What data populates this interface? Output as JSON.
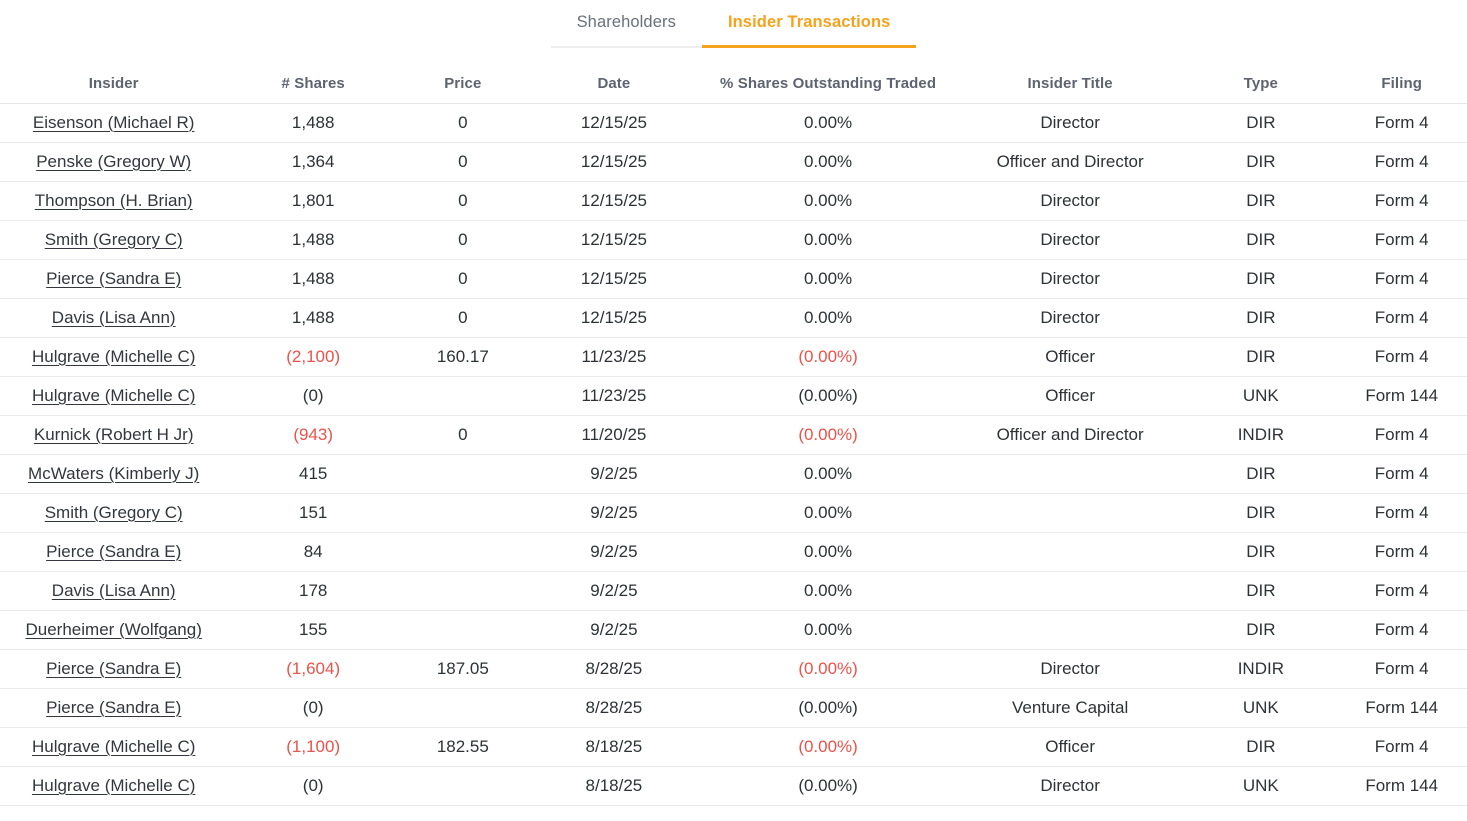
{
  "tabs": [
    {
      "label": "Shareholders",
      "active": false
    },
    {
      "label": "Insider Transactions",
      "active": true
    }
  ],
  "colors": {
    "accent_orange": "#f5a21c",
    "negative_red": "#e9534b",
    "inactive_tab_gray": "#69707a",
    "row_border": "#e9ebee"
  },
  "table": {
    "columns": [
      "Insider",
      "# Shares",
      "Price",
      "Date",
      "% Shares Outstanding Traded",
      "Insider Title",
      "Type",
      "Filing"
    ],
    "rows": [
      {
        "insider": "Eisenson (Michael R)",
        "shares": "1,488",
        "price": "0",
        "date": "12/15/25",
        "pct": "0.00%",
        "title": "Director",
        "type": "DIR",
        "filing": "Form 4",
        "negative": false
      },
      {
        "insider": "Penske (Gregory W)",
        "shares": "1,364",
        "price": "0",
        "date": "12/15/25",
        "pct": "0.00%",
        "title": "Officer and Director",
        "type": "DIR",
        "filing": "Form 4",
        "negative": false
      },
      {
        "insider": "Thompson (H. Brian)",
        "shares": "1,801",
        "price": "0",
        "date": "12/15/25",
        "pct": "0.00%",
        "title": "Director",
        "type": "DIR",
        "filing": "Form 4",
        "negative": false
      },
      {
        "insider": "Smith (Gregory C)",
        "shares": "1,488",
        "price": "0",
        "date": "12/15/25",
        "pct": "0.00%",
        "title": "Director",
        "type": "DIR",
        "filing": "Form 4",
        "negative": false
      },
      {
        "insider": "Pierce (Sandra E)",
        "shares": "1,488",
        "price": "0",
        "date": "12/15/25",
        "pct": "0.00%",
        "title": "Director",
        "type": "DIR",
        "filing": "Form 4",
        "negative": false
      },
      {
        "insider": "Davis (Lisa Ann)",
        "shares": "1,488",
        "price": "0",
        "date": "12/15/25",
        "pct": "0.00%",
        "title": "Director",
        "type": "DIR",
        "filing": "Form 4",
        "negative": false
      },
      {
        "insider": "Hulgrave (Michelle C)",
        "shares": "(2,100)",
        "price": "160.17",
        "date": "11/23/25",
        "pct": "(0.00%)",
        "title": "Officer",
        "type": "DIR",
        "filing": "Form 4",
        "negative": true
      },
      {
        "insider": "Hulgrave (Michelle C)",
        "shares": "(0)",
        "price": "",
        "date": "11/23/25",
        "pct": "(0.00%)",
        "title": "Officer",
        "type": "UNK",
        "filing": "Form 144",
        "negative": false
      },
      {
        "insider": "Kurnick (Robert H Jr)",
        "shares": "(943)",
        "price": "0",
        "date": "11/20/25",
        "pct": "(0.00%)",
        "title": "Officer and Director",
        "type": "INDIR",
        "filing": "Form 4",
        "negative": true
      },
      {
        "insider": "McWaters (Kimberly J)",
        "shares": "415",
        "price": "",
        "date": "9/2/25",
        "pct": "0.00%",
        "title": "",
        "type": "DIR",
        "filing": "Form 4",
        "negative": false
      },
      {
        "insider": "Smith (Gregory C)",
        "shares": "151",
        "price": "",
        "date": "9/2/25",
        "pct": "0.00%",
        "title": "",
        "type": "DIR",
        "filing": "Form 4",
        "negative": false
      },
      {
        "insider": "Pierce (Sandra E)",
        "shares": "84",
        "price": "",
        "date": "9/2/25",
        "pct": "0.00%",
        "title": "",
        "type": "DIR",
        "filing": "Form 4",
        "negative": false
      },
      {
        "insider": "Davis (Lisa Ann)",
        "shares": "178",
        "price": "",
        "date": "9/2/25",
        "pct": "0.00%",
        "title": "",
        "type": "DIR",
        "filing": "Form 4",
        "negative": false
      },
      {
        "insider": "Duerheimer (Wolfgang)",
        "shares": "155",
        "price": "",
        "date": "9/2/25",
        "pct": "0.00%",
        "title": "",
        "type": "DIR",
        "filing": "Form 4",
        "negative": false
      },
      {
        "insider": "Pierce (Sandra E)",
        "shares": "(1,604)",
        "price": "187.05",
        "date": "8/28/25",
        "pct": "(0.00%)",
        "title": "Director",
        "type": "INDIR",
        "filing": "Form 4",
        "negative": true
      },
      {
        "insider": "Pierce (Sandra E)",
        "shares": "(0)",
        "price": "",
        "date": "8/28/25",
        "pct": "(0.00%)",
        "title": "Venture Capital",
        "type": "UNK",
        "filing": "Form 144",
        "negative": false
      },
      {
        "insider": "Hulgrave (Michelle C)",
        "shares": "(1,100)",
        "price": "182.55",
        "date": "8/18/25",
        "pct": "(0.00%)",
        "title": "Officer",
        "type": "DIR",
        "filing": "Form 4",
        "negative": true
      },
      {
        "insider": "Hulgrave (Michelle C)",
        "shares": "(0)",
        "price": "",
        "date": "8/18/25",
        "pct": "(0.00%)",
        "title": "Director",
        "type": "UNK",
        "filing": "Form 144",
        "negative": false
      }
    ]
  }
}
